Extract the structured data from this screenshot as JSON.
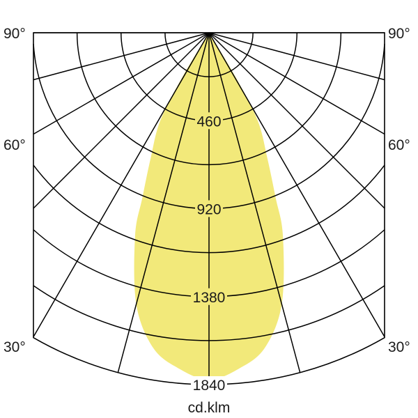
{
  "chart_data": {
    "type": "polar-area",
    "unit_label": "cd.klm",
    "radial_ticks": [
      460,
      920,
      1380,
      1840
    ],
    "radial_max": 1840,
    "radial_grid_step": 230,
    "angle_labels": [
      "90°",
      "60°",
      "30°"
    ],
    "angle_grid_step_deg": 15,
    "angle_range_deg": [
      -90,
      90
    ],
    "grid": true,
    "fill_color": "#f2e97a",
    "series": [
      {
        "angles_deg": [
          0,
          5,
          10,
          15,
          20,
          22,
          25,
          29,
          31,
          33
        ],
        "values": [
          1815,
          1765,
          1675,
          1470,
          1130,
          930,
          720,
          525,
          270,
          0
        ],
        "symmetric": true
      }
    ]
  }
}
